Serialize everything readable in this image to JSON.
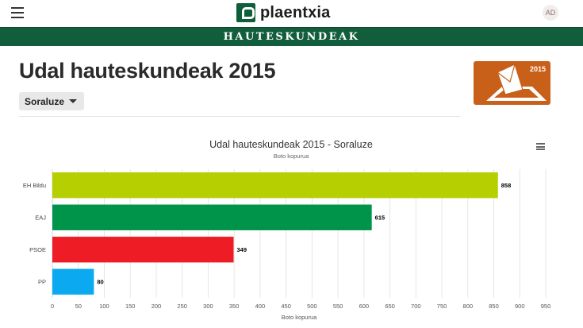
{
  "header": {
    "brand": "plaentxia",
    "avatar_initials": "AD",
    "banner": "HAUTESKUNDEAK"
  },
  "page": {
    "title": "Udal hauteskundeak 2015",
    "municipality_select": "Soraluze",
    "badge_year": "2015"
  },
  "icons": {
    "menu": "hamburger-icon",
    "chart_menu": "chart-menu-icon",
    "badge": "ballot-box-icon"
  },
  "chart_data": {
    "type": "bar",
    "orientation": "horizontal",
    "title": "Udal hauteskundeak 2015 - Soraluze",
    "subtitle": "Boto kopurua",
    "xlabel": "Boto kopurua",
    "ylabel": "",
    "categories": [
      "EH Bildu",
      "EAJ",
      "PSOE",
      "PP"
    ],
    "values": [
      858,
      615,
      349,
      80
    ],
    "colors": [
      "#b5cf00",
      "#00944a",
      "#ee1c25",
      "#0baaf0"
    ],
    "xlim": [
      0,
      950
    ],
    "xticks": [
      0,
      50,
      100,
      150,
      200,
      250,
      300,
      350,
      400,
      450,
      500,
      550,
      600,
      650,
      700,
      750,
      800,
      850,
      900,
      950
    ],
    "grid": true,
    "data_labels": true
  }
}
